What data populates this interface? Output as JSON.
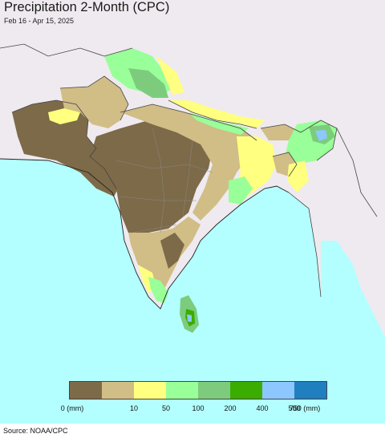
{
  "header": {
    "title": "Precipitation 2-Month (CPC)",
    "subtitle": "Feb 16 - Apr 15, 2025"
  },
  "legend": {
    "colors": [
      "#7d6a49",
      "#d1bd86",
      "#ffff80",
      "#99ff99",
      "#7dcc7d",
      "#3aad00",
      "#8cc8ff",
      "#1f7fbf"
    ],
    "labels": [
      "0 (mm)",
      "10",
      "50",
      "100",
      "200",
      "400",
      "500",
      "750 (mm)"
    ]
  },
  "map": {
    "ocean_color": "#b3ffff",
    "land_color": "#efeaef",
    "border_color": "#444444"
  },
  "footer": {
    "source": "Source: NOAA/CPC"
  }
}
